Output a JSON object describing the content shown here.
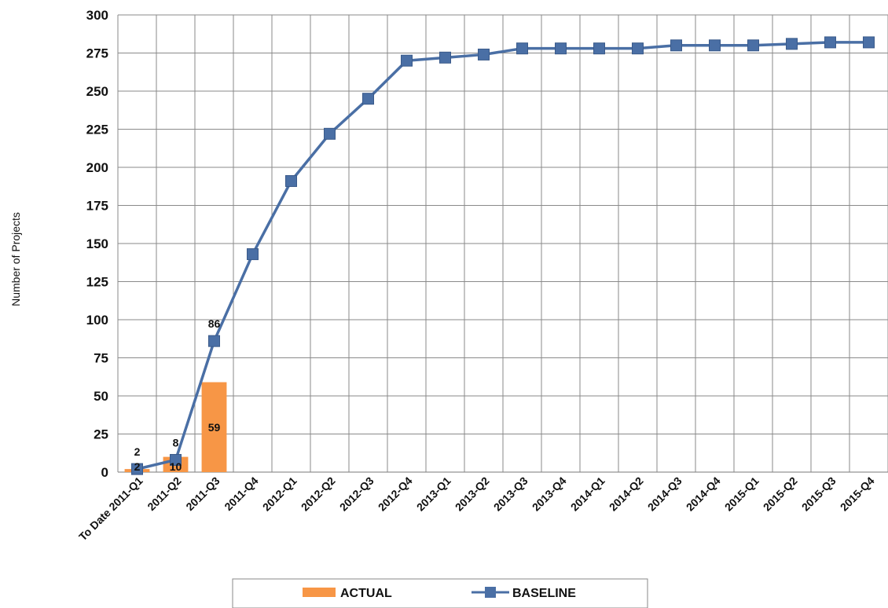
{
  "chart_data": {
    "type": "bar+line",
    "title": "",
    "xlabel": "",
    "ylabel": "Number of Projects",
    "ylim": [
      0,
      300
    ],
    "yticks": [
      "0",
      "25",
      "50",
      "75",
      "100",
      "125",
      "150",
      "175",
      "200",
      "225",
      "250",
      "275",
      "300"
    ],
    "grid": true,
    "legend_position": "bottom",
    "categories": [
      "To Date 2011-Q1",
      "2011-Q2",
      "2011-Q3",
      "2011-Q4",
      "2012-Q1",
      "2012-Q2",
      "2012-Q3",
      "2012-Q4",
      "2013-Q1",
      "2013-Q2",
      "2013-Q3",
      "2013-Q4",
      "2014-Q1",
      "2014-Q2",
      "2014-Q3",
      "2014-Q4",
      "2015-Q1",
      "2015-Q2",
      "2015-Q3",
      "2015-Q4"
    ],
    "series": [
      {
        "name": "ACTUAL",
        "type": "bar",
        "color": "#f79646",
        "values": [
          2,
          10,
          59,
          null,
          null,
          null,
          null,
          null,
          null,
          null,
          null,
          null,
          null,
          null,
          null,
          null,
          null,
          null,
          null,
          null
        ],
        "data_labels": [
          "2",
          "10",
          "59"
        ]
      },
      {
        "name": "BASELINE",
        "type": "line",
        "color": "#4a6fa5",
        "values": [
          2,
          8,
          86,
          143,
          191,
          222,
          245,
          270,
          272,
          274,
          278,
          278,
          278,
          278,
          280,
          280,
          280,
          281,
          282,
          282
        ],
        "data_labels": [
          "2",
          "8",
          "86"
        ]
      }
    ]
  }
}
